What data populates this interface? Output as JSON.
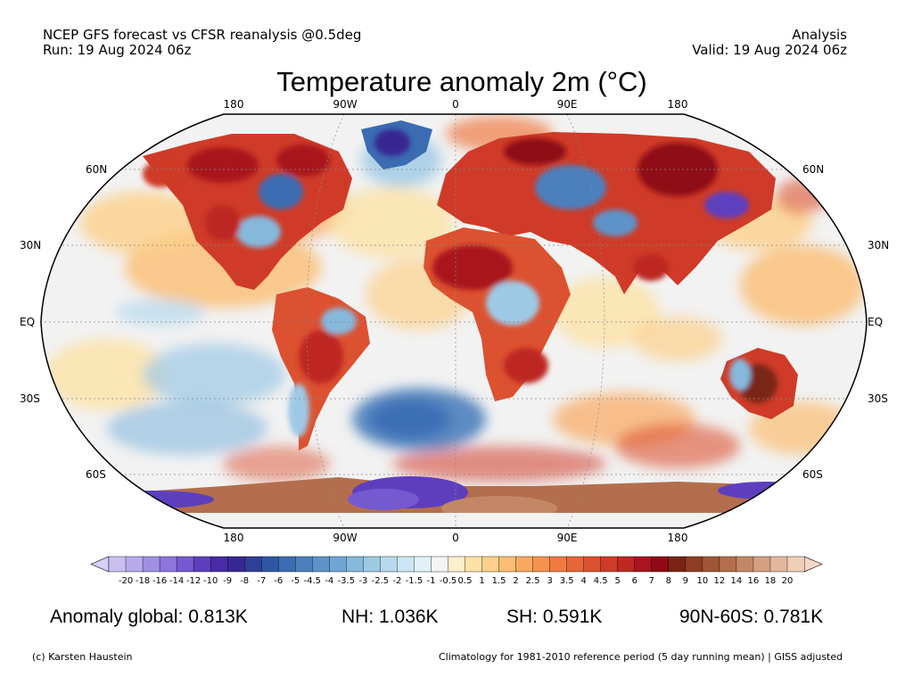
{
  "header": {
    "line1_left": "NCEP GFS forecast vs CFSR reanalysis @0.5deg",
    "line2_left": "Run: 19 Aug 2024 06z",
    "line1_right": "Analysis",
    "line2_right": "Valid: 19 Aug 2024 06z"
  },
  "title": "Temperature anomaly 2m (°C)",
  "map": {
    "projection": "Robinson",
    "lon_labels_top": [
      "180",
      "90W",
      "0",
      "90E",
      "180"
    ],
    "lon_labels_bottom": [
      "180",
      "90W",
      "0",
      "90E",
      "180"
    ],
    "lat_labels": [
      "60N",
      "30N",
      "EQ",
      "30S",
      "60S"
    ],
    "ocean_color": "#f2f2f2",
    "grid_style": "dotted"
  },
  "colorbar": {
    "labels": [
      "-20",
      "-18",
      "-16",
      "-14",
      "-12",
      "-10",
      "-9",
      "-8",
      "-7",
      "-6",
      "-5",
      "-4.5",
      "-4",
      "-3.5",
      "-3",
      "-2.5",
      "-2",
      "-1.5",
      "-1",
      "-0.5",
      "0.5",
      "1",
      "1.5",
      "2",
      "2.5",
      "3",
      "3.5",
      "4",
      "4.5",
      "5",
      "6",
      "7",
      "8",
      "9",
      "10",
      "12",
      "14",
      "16",
      "18",
      "20"
    ],
    "colors": [
      "#c9c0f0",
      "#b7aaec",
      "#a18fe4",
      "#8c75dc",
      "#7559d0",
      "#5d3fbe",
      "#4a2aa8",
      "#372790",
      "#2f3f95",
      "#2e56a3",
      "#3b6cb2",
      "#4b80bd",
      "#5d93c8",
      "#70a6d3",
      "#86b8dc",
      "#9ec9e5",
      "#b7d8ee",
      "#cde5f4",
      "#e2f0fa",
      "#f4f4f4",
      "#fdefcc",
      "#fde2a6",
      "#fcd08a",
      "#fbbd73",
      "#f9a85f",
      "#f5924e",
      "#ef7b42",
      "#e66638",
      "#dc5130",
      "#cf3b28",
      "#be2822",
      "#a8151c",
      "#8f0a14",
      "#7a2514",
      "#8e3c22",
      "#a05536",
      "#b36e4d",
      "#c48766",
      "#d4a082",
      "#e2b79e",
      "#eecdb9"
    ],
    "under_color": "#d6d0f6",
    "over_color": "#f3d8c8"
  },
  "stats": {
    "global": "Anomaly global: 0.813K",
    "nh": "NH: 1.036K",
    "sh": "SH: 0.591K",
    "arctic": "90N-60S: 0.781K"
  },
  "footer": {
    "left": "(c) Karsten Haustein",
    "right": "Climatology for 1981-2010 reference period (5 day running mean) | GISS adjusted"
  }
}
